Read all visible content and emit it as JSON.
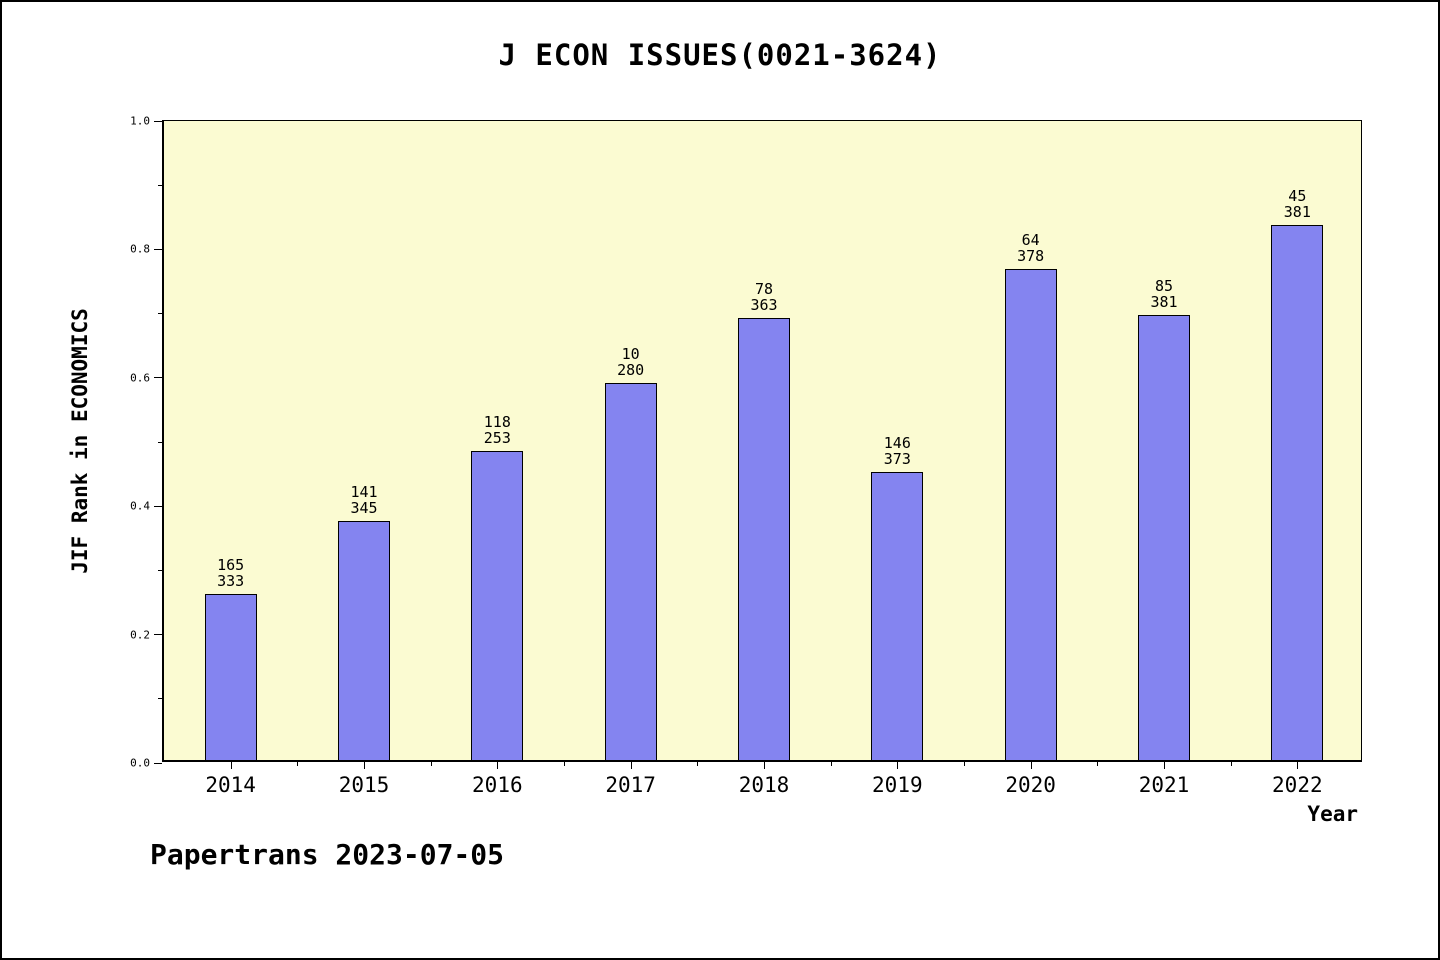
{
  "chart_data": {
    "type": "bar",
    "title": "J ECON ISSUES(0021-3624)",
    "xlabel": "Year",
    "ylabel": "JIF Rank in ECONOMICS",
    "footer": "Papertrans 2023-07-05",
    "ylim": [
      0.0,
      1.0
    ],
    "yticks": [
      "0.0",
      "0.2",
      "0.4",
      "0.6",
      "0.8",
      "1.0"
    ],
    "grid": false,
    "legend": "none",
    "categories": [
      "2014",
      "2015",
      "2016",
      "2017",
      "2018",
      "2019",
      "2020",
      "2021",
      "2022"
    ],
    "bars": [
      {
        "year": "2014",
        "rank": "165",
        "total": "333",
        "height": 0.259
      },
      {
        "year": "2015",
        "rank": "141",
        "total": "345",
        "height": 0.372
      },
      {
        "year": "2016",
        "rank": "118",
        "total": "253",
        "height": 0.481
      },
      {
        "year": "2017",
        "rank": "10",
        "total": "280",
        "height": 0.587
      },
      {
        "year": "2018",
        "rank": "78",
        "total": "363",
        "height": 0.688
      },
      {
        "year": "2019",
        "rank": "146",
        "total": "373",
        "height": 0.449
      },
      {
        "year": "2020",
        "rank": "64",
        "total": "378",
        "height": 0.765
      },
      {
        "year": "2021",
        "rank": "85",
        "total": "381",
        "height": 0.693
      },
      {
        "year": "2022",
        "rank": "45",
        "total": "381",
        "height": 0.833
      }
    ],
    "colors": {
      "bar_fill": "#8484F0",
      "bar_edge": "#000000",
      "plot_bg": "#FBFBD2",
      "text": "#000000"
    }
  }
}
